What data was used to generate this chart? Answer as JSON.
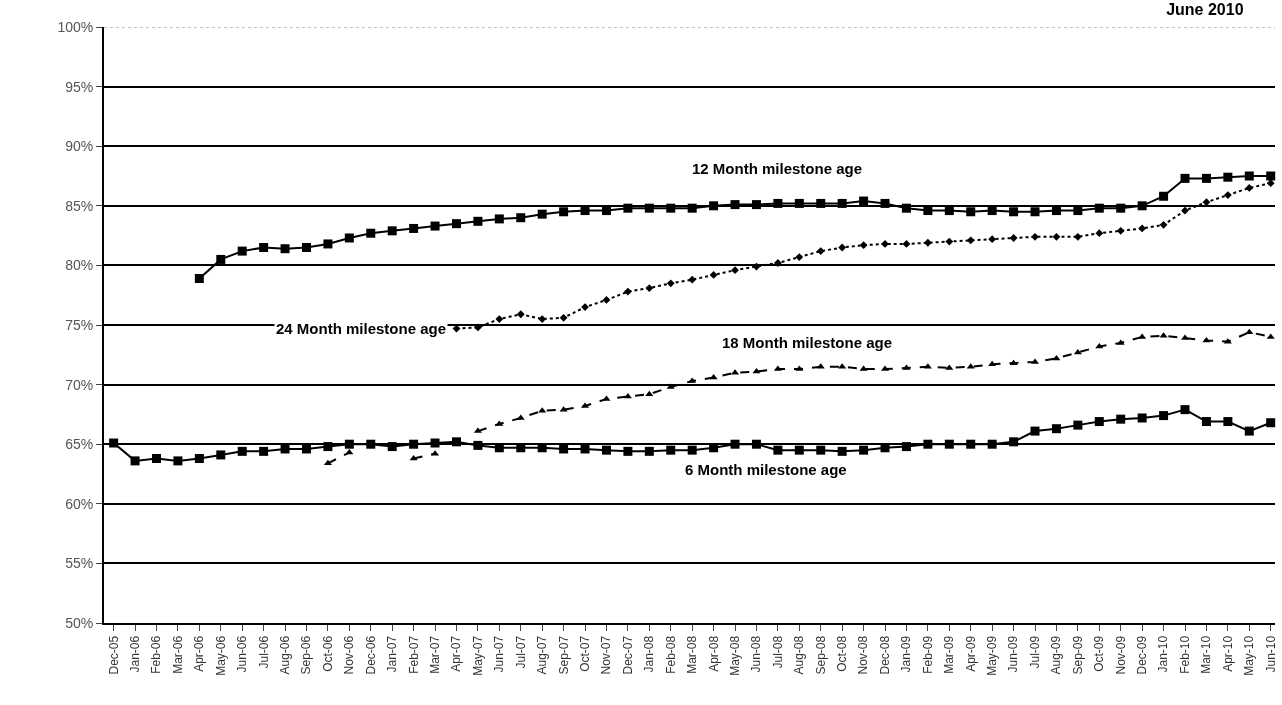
{
  "chart_data": {
    "type": "line",
    "title": "June 2010",
    "categories": [
      "Dec-05",
      "Jan-06",
      "Feb-06",
      "Mar-06",
      "Apr-06",
      "May-06",
      "Jun-06",
      "Jul-06",
      "Aug-06",
      "Sep-06",
      "Oct-06",
      "Nov-06",
      "Dec-06",
      "Jan-07",
      "Feb-07",
      "Mar-07",
      "Apr-07",
      "May-07",
      "Jun-07",
      "Jul-07",
      "Aug-07",
      "Sep-07",
      "Oct-07",
      "Nov-07",
      "Dec-07",
      "Jan-08",
      "Feb-08",
      "Mar-08",
      "Apr-08",
      "May-08",
      "Jun-08",
      "Jul-08",
      "Aug-08",
      "Sep-08",
      "Oct-08",
      "Nov-08",
      "Dec-08",
      "Jan-09",
      "Feb-09",
      "Mar-09",
      "Apr-09",
      "May-09",
      "Jun-09",
      "Jul-09",
      "Aug-09",
      "Sep-09",
      "Oct-09",
      "Nov-09",
      "Dec-09",
      "Jan-10",
      "Feb-10",
      "Mar-10",
      "Apr-10",
      "May-10",
      "Jun-10"
    ],
    "series": [
      {
        "name": "12 Month milestone age",
        "color": "#000000",
        "marker": "square",
        "line_style": "solid",
        "values": [
          null,
          null,
          null,
          null,
          78.9,
          80.5,
          81.2,
          81.5,
          81.4,
          81.5,
          81.8,
          82.3,
          82.7,
          82.9,
          83.1,
          83.3,
          83.5,
          83.7,
          83.9,
          84.0,
          84.3,
          84.5,
          84.6,
          84.6,
          84.8,
          84.8,
          84.8,
          84.8,
          85.0,
          85.1,
          85.1,
          85.2,
          85.2,
          85.2,
          85.2,
          85.4,
          85.2,
          84.8,
          84.6,
          84.6,
          84.5,
          84.6,
          84.5,
          84.5,
          84.6,
          84.6,
          84.8,
          84.8,
          85.0,
          85.8,
          87.3,
          87.3,
          87.4,
          87.5,
          87.5
        ]
      },
      {
        "name": "24 Month milestone age",
        "color": "#000000",
        "marker": "diamond",
        "line_style": "dotted",
        "values": [
          null,
          null,
          null,
          null,
          null,
          null,
          null,
          null,
          null,
          null,
          null,
          null,
          null,
          null,
          null,
          null,
          74.7,
          74.8,
          75.5,
          75.9,
          75.5,
          75.6,
          76.5,
          77.1,
          77.8,
          78.1,
          78.5,
          78.8,
          79.2,
          79.6,
          79.9,
          80.2,
          80.7,
          81.2,
          81.5,
          81.7,
          81.8,
          81.8,
          81.9,
          82.0,
          82.1,
          82.2,
          82.3,
          82.4,
          82.4,
          82.4,
          82.7,
          82.9,
          83.1,
          83.4,
          84.6,
          85.3,
          85.9,
          86.5,
          86.9
        ]
      },
      {
        "name": "18 Month milestone age",
        "color": "#000000",
        "marker": "triangle",
        "line_style": "dashed",
        "values": [
          null,
          null,
          null,
          null,
          null,
          null,
          null,
          null,
          null,
          null,
          63.4,
          64.3,
          null,
          null,
          63.8,
          64.2,
          null,
          66.1,
          66.7,
          67.2,
          67.8,
          67.9,
          68.2,
          68.8,
          69.0,
          69.2,
          69.8,
          70.3,
          70.6,
          71.0,
          71.1,
          71.3,
          71.3,
          71.5,
          71.5,
          71.3,
          71.3,
          71.4,
          71.5,
          71.4,
          71.5,
          71.7,
          71.8,
          71.9,
          72.2,
          72.7,
          73.2,
          73.5,
          74.0,
          74.1,
          73.9,
          73.7,
          73.6,
          74.4,
          74.0
        ]
      },
      {
        "name": "6 Month milestone age",
        "color": "#000000",
        "marker": "square",
        "line_style": "solid",
        "values": [
          65.1,
          63.6,
          63.8,
          63.6,
          63.8,
          64.1,
          64.4,
          64.4,
          64.6,
          64.6,
          64.8,
          65.0,
          65.0,
          64.8,
          65.0,
          65.1,
          65.2,
          64.9,
          64.7,
          64.7,
          64.7,
          64.6,
          64.6,
          64.5,
          64.4,
          64.4,
          64.5,
          64.5,
          64.7,
          65.0,
          65.0,
          64.5,
          64.5,
          64.5,
          64.4,
          64.5,
          64.7,
          64.8,
          65.0,
          65.0,
          65.0,
          65.0,
          65.2,
          66.1,
          66.3,
          66.6,
          66.9,
          67.1,
          67.2,
          67.4,
          67.9,
          66.9,
          66.9,
          66.1,
          66.8
        ]
      }
    ],
    "ylim": [
      50,
      100
    ],
    "yticks": [
      {
        "value": 50,
        "label": "50%"
      },
      {
        "value": 55,
        "label": "55%"
      },
      {
        "value": 60,
        "label": "60%"
      },
      {
        "value": 65,
        "label": "65%"
      },
      {
        "value": 70,
        "label": "70%"
      },
      {
        "value": 75,
        "label": "75%"
      },
      {
        "value": 80,
        "label": "80%"
      },
      {
        "value": 85,
        "label": "85%"
      },
      {
        "value": 90,
        "label": "90%"
      },
      {
        "value": 95,
        "label": "95%"
      },
      {
        "value": 100,
        "label": "100%"
      }
    ],
    "grid": "y",
    "legend": false
  }
}
